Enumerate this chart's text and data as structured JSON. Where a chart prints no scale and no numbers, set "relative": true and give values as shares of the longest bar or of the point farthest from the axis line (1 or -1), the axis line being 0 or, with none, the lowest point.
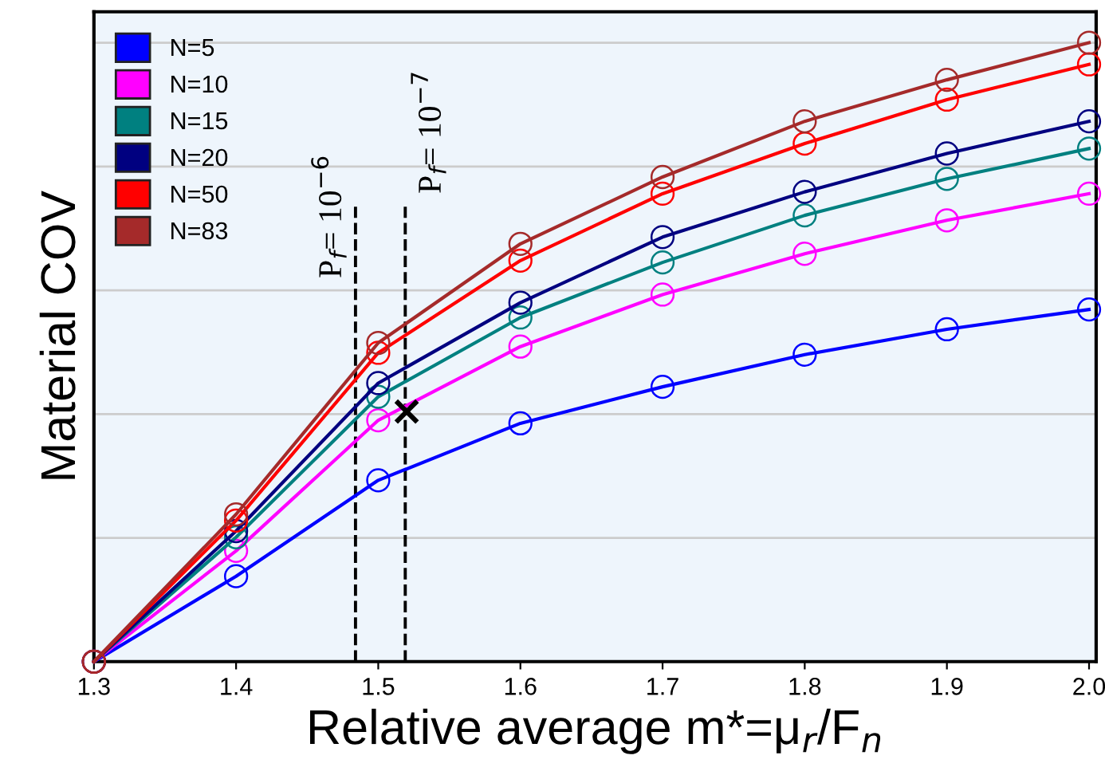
{
  "chart_data": {
    "type": "line",
    "xlabel": "Relative average m*=μ$_{r}$/F$_{n}$",
    "ylabel": "Material COV",
    "relative": true,
    "x": [
      1.3,
      1.4,
      1.5,
      1.6,
      1.7,
      1.8,
      1.9,
      2.0
    ],
    "xlim": [
      1.3,
      2.005
    ],
    "xticks": [
      {
        "value": 1.3,
        "label": "1.3"
      },
      {
        "value": 1.4,
        "label": "1.4"
      },
      {
        "value": 1.5,
        "label": "1.5"
      },
      {
        "value": 1.6,
        "label": "1.6"
      },
      {
        "value": 1.7,
        "label": "1.7"
      },
      {
        "value": 1.8,
        "label": "1.8"
      },
      {
        "value": 1.9,
        "label": "1.9"
      },
      {
        "value": 2.0,
        "label": "2.0"
      }
    ],
    "tick_labels": "x",
    "grid": "y",
    "legend": "top left",
    "marker": "circle",
    "line_style": "solid",
    "series": [
      {
        "name": "N=5",
        "color": "#0000ff",
        "values": [
          0,
          0.138,
          0.293,
          0.385,
          0.444,
          0.496,
          0.537,
          0.569
        ]
      },
      {
        "name": "N=10",
        "color": "#ff00ff",
        "values": [
          0,
          0.179,
          0.39,
          0.509,
          0.593,
          0.659,
          0.713,
          0.756
        ]
      },
      {
        "name": "N=15",
        "color": "#008080",
        "values": [
          0,
          0.201,
          0.428,
          0.556,
          0.645,
          0.721,
          0.78,
          0.829
        ]
      },
      {
        "name": "N=20",
        "color": "#000080",
        "values": [
          0,
          0.211,
          0.45,
          0.58,
          0.686,
          0.759,
          0.821,
          0.873
        ]
      },
      {
        "name": "N=50",
        "color": "#ff0000",
        "values": [
          0,
          0.228,
          0.499,
          0.648,
          0.756,
          0.837,
          0.908,
          0.965
        ]
      },
      {
        "name": "N=83",
        "color": "#a52a2a",
        "values": [
          0,
          0.238,
          0.515,
          0.675,
          0.783,
          0.873,
          0.94,
          1
        ]
      },
      {
        "type": "scatter",
        "marker": "cross",
        "color": "#000000",
        "x": [
          1.52
        ],
        "values": [
          0.404
        ]
      }
    ],
    "ref_lines": [
      {
        "axis": "x",
        "value": 1.484,
        "color": "#000000",
        "line_style": "dashed"
      },
      {
        "axis": "x",
        "value": 1.519,
        "color": "#000000",
        "line_style": "dashed"
      }
    ],
    "annotations": [
      "P$_{f}$= 10$^{−6}$",
      "P$_{f}$= 10$^{−7}$"
    ]
  }
}
